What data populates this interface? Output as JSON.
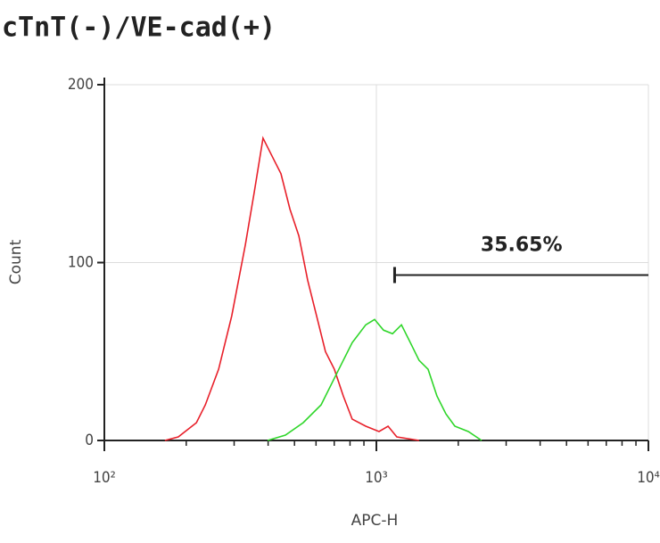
{
  "chart_data": {
    "type": "line",
    "title": "cTnT(-)/VE-cad(+)",
    "xlabel": "APC-H",
    "ylabel": "Count",
    "xscale": "log",
    "xlim": [
      100,
      10000
    ],
    "ylim": [
      0,
      200
    ],
    "xticks": [
      {
        "value": 100,
        "label": "10²"
      },
      {
        "value": 1000,
        "label": "10³"
      },
      {
        "value": 10000,
        "label": "10⁴"
      }
    ],
    "yticks": [
      0,
      100,
      200
    ],
    "grid": true,
    "series": [
      {
        "color": "#e8202a",
        "x": [
          167,
          187,
          218,
          235,
          263,
          294,
          330,
          356,
          383,
          413,
          446,
          481,
          519,
          559,
          603,
          650,
          701,
          756,
          815,
          914,
          1023,
          1104,
          1189,
          1436
        ],
        "values": [
          0,
          2,
          10,
          20,
          40,
          70,
          110,
          140,
          170,
          160,
          150,
          130,
          115,
          90,
          70,
          50,
          40,
          25,
          12,
          8,
          5,
          8,
          2,
          0
        ]
      },
      {
        "color": "#2fd62a",
        "x": [
          398,
          463,
          538,
          626,
          701,
          756,
          815,
          914,
          985,
          1062,
          1146,
          1236,
          1333,
          1436,
          1549,
          1670,
          1801,
          1943,
          2178,
          2438
        ],
        "values": [
          0,
          3,
          10,
          20,
          35,
          45,
          55,
          65,
          68,
          62,
          60,
          65,
          55,
          45,
          40,
          25,
          15,
          8,
          5,
          0
        ]
      }
    ],
    "gate": {
      "range": [
        1167,
        10000
      ],
      "level": 93,
      "label": "35.65%"
    }
  }
}
